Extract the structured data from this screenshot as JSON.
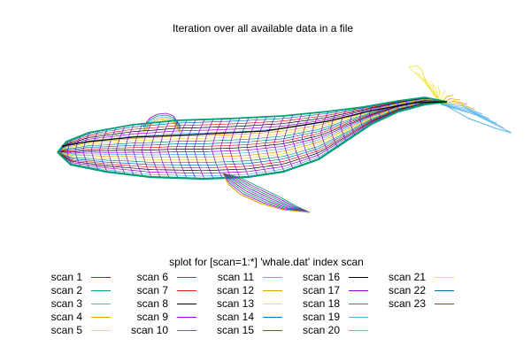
{
  "chart_data": {
    "type": "3d-mesh",
    "title": "Iteration over all available data in a file",
    "legend_title": "splot for [scan=1:*] 'whale.dat' index scan",
    "legend_position": "bottom",
    "series": [
      {
        "name": "scan 1",
        "color": "#9400d3"
      },
      {
        "name": "scan 2",
        "color": "#009e73"
      },
      {
        "name": "scan 3",
        "color": "#56b4e9"
      },
      {
        "name": "scan 4",
        "color": "#e69f00"
      },
      {
        "name": "scan 5",
        "color": "#f0e442"
      },
      {
        "name": "scan 6",
        "color": "#0072b2"
      },
      {
        "name": "scan 7",
        "color": "#e51e10"
      },
      {
        "name": "scan 8",
        "color": "#000000"
      },
      {
        "name": "scan 9",
        "color": "#9400d3"
      },
      {
        "name": "scan 10",
        "color": "#009e73"
      },
      {
        "name": "scan 11",
        "color": "#56b4e9"
      },
      {
        "name": "scan 12",
        "color": "#e69f00"
      },
      {
        "name": "scan 13",
        "color": "#f0e442"
      },
      {
        "name": "scan 14",
        "color": "#0072b2"
      },
      {
        "name": "scan 15",
        "color": "#e51e10"
      },
      {
        "name": "scan 16",
        "color": "#000000"
      },
      {
        "name": "scan 17",
        "color": "#9400d3"
      },
      {
        "name": "scan 18",
        "color": "#009e73"
      },
      {
        "name": "scan 19",
        "color": "#56b4e9"
      },
      {
        "name": "scan 20",
        "color": "#e69f00"
      },
      {
        "name": "scan 21",
        "color": "#f0e442"
      },
      {
        "name": "scan 22",
        "color": "#0072b2"
      },
      {
        "name": "scan 23",
        "color": "#e51e10"
      }
    ]
  }
}
